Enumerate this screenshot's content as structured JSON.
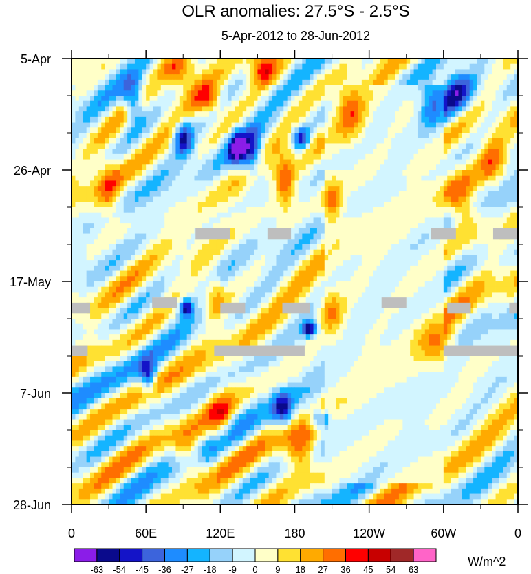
{
  "chart_data": {
    "type": "heatmap",
    "title": "OLR anomalies: 27.5°S - 2.5°S",
    "subtitle": "5-Apr-2012 to 28-Jun-2012",
    "xlabel": "",
    "ylabel": "",
    "x_ticks": [
      {
        "lon": 0,
        "label": "0"
      },
      {
        "lon": 60,
        "label": "60E"
      },
      {
        "lon": 120,
        "label": "120E"
      },
      {
        "lon": 180,
        "label": "180"
      },
      {
        "lon": 240,
        "label": "120W"
      },
      {
        "lon": 300,
        "label": "60W"
      },
      {
        "lon": 360,
        "label": "0"
      }
    ],
    "x_range": [
      0,
      360
    ],
    "y_ticks": [
      {
        "day": 0,
        "label": "5-Apr"
      },
      {
        "day": 21,
        "label": "26-Apr"
      },
      {
        "day": 42,
        "label": "17-May"
      },
      {
        "day": 63,
        "label": "7-Jun"
      },
      {
        "day": 84,
        "label": "28-Jun"
      }
    ],
    "y_range": [
      0,
      84
    ],
    "colorbar": {
      "unit": "W/m^2",
      "levels": [
        -63,
        -54,
        -45,
        -36,
        -27,
        -18,
        -9,
        0,
        9,
        18,
        27,
        36,
        45,
        54,
        63
      ],
      "colors": [
        "#8b1de8",
        "#0a0a8c",
        "#1414c8",
        "#3c64dc",
        "#1e8cff",
        "#14b4ff",
        "#96d2fa",
        "#d2f5ff",
        "#ffffc8",
        "#ffe132",
        "#ffaa00",
        "#ff6e00",
        "#ff0000",
        "#c80000",
        "#a02828",
        "#ff64c8"
      ]
    },
    "missing_color": "#bebebe",
    "missing_segments": [
      {
        "lon0": 100,
        "lon1": 128,
        "day0": 32,
        "day1": 34
      },
      {
        "lon0": 158,
        "lon1": 177,
        "day0": 32,
        "day1": 34
      },
      {
        "lon0": 290,
        "lon1": 310,
        "day0": 32,
        "day1": 34
      },
      {
        "lon0": 340,
        "lon1": 360,
        "day0": 32,
        "day1": 34
      },
      {
        "lon0": 0,
        "lon1": 15,
        "day0": 46,
        "day1": 48
      },
      {
        "lon0": 65,
        "lon1": 85,
        "day0": 45,
        "day1": 47
      },
      {
        "lon0": 120,
        "lon1": 140,
        "day0": 46,
        "day1": 48
      },
      {
        "lon0": 170,
        "lon1": 192,
        "day0": 46,
        "day1": 48
      },
      {
        "lon0": 250,
        "lon1": 270,
        "day0": 45,
        "day1": 47
      },
      {
        "lon0": 303,
        "lon1": 322,
        "day0": 46,
        "day1": 48
      },
      {
        "lon0": 353,
        "lon1": 360,
        "day0": 46,
        "day1": 48
      },
      {
        "lon0": 0,
        "lon1": 13,
        "day0": 54,
        "day1": 56
      },
      {
        "lon0": 115,
        "lon1": 188,
        "day0": 54,
        "day1": 56
      },
      {
        "lon0": 300,
        "lon1": 360,
        "day0": 54,
        "day1": 56
      }
    ],
    "features": [
      {
        "lon": 192,
        "day": 51,
        "value": -62,
        "w": 6,
        "h": 1.5
      },
      {
        "lon": 92,
        "day": 47,
        "value": -55,
        "w": 5,
        "h": 1.5
      },
      {
        "lon": 133,
        "day": 17,
        "value": -54,
        "w": 7,
        "h": 3
      },
      {
        "lon": 145,
        "day": 18,
        "value": -48,
        "w": 9,
        "h": 4
      },
      {
        "lon": 90,
        "day": 15,
        "value": -52,
        "w": 7,
        "h": 3
      },
      {
        "lon": 185,
        "day": 15,
        "value": -50,
        "w": 6,
        "h": 2
      },
      {
        "lon": 50,
        "day": 8,
        "value": -45,
        "w": 8,
        "h": 4
      },
      {
        "lon": 200,
        "day": 68,
        "value": -48,
        "w": 8,
        "h": 2
      },
      {
        "lon": 170,
        "day": 66,
        "value": -45,
        "w": 8,
        "h": 3
      },
      {
        "lon": 62,
        "day": 60,
        "value": -44,
        "w": 6,
        "h": 3
      },
      {
        "lon": 310,
        "day": 6,
        "value": -40,
        "w": 12,
        "h": 4
      },
      {
        "lon": 290,
        "day": 8,
        "value": -32,
        "w": 10,
        "h": 5
      },
      {
        "lon": 110,
        "day": 8,
        "value": 34,
        "w": 12,
        "h": 3
      },
      {
        "lon": 155,
        "day": 2,
        "value": 40,
        "w": 12,
        "h": 3
      },
      {
        "lon": 85,
        "day": 2,
        "value": 32,
        "w": 14,
        "h": 3
      },
      {
        "lon": 172,
        "day": 23,
        "value": 34,
        "w": 8,
        "h": 5
      },
      {
        "lon": 210,
        "day": 27,
        "value": 30,
        "w": 8,
        "h": 5
      },
      {
        "lon": 315,
        "day": 28,
        "value": 32,
        "w": 14,
        "h": 5
      },
      {
        "lon": 340,
        "day": 20,
        "value": 24,
        "w": 10,
        "h": 5
      },
      {
        "lon": 225,
        "day": 10,
        "value": 28,
        "w": 12,
        "h": 6
      },
      {
        "lon": 185,
        "day": 74,
        "value": 30,
        "w": 12,
        "h": 4
      },
      {
        "lon": 120,
        "day": 68,
        "value": 28,
        "w": 10,
        "h": 5
      },
      {
        "lon": 95,
        "day": 75,
        "value": 24,
        "w": 12,
        "h": 5
      },
      {
        "lon": 295,
        "day": 54,
        "value": 26,
        "w": 16,
        "h": 4
      },
      {
        "lon": 210,
        "day": 48,
        "value": 26,
        "w": 10,
        "h": 4
      },
      {
        "lon": 115,
        "day": 45,
        "value": 28,
        "w": 10,
        "h": 4
      },
      {
        "lon": 30,
        "day": 25,
        "value": 26,
        "w": 10,
        "h": 6
      }
    ]
  }
}
